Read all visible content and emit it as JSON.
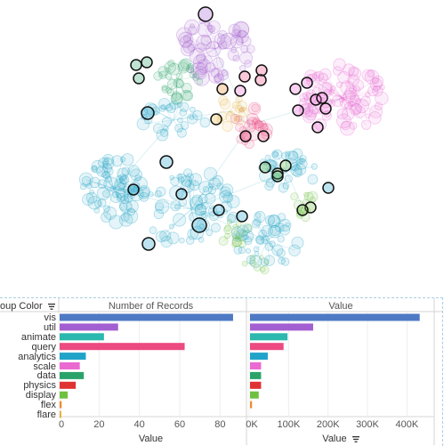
{
  "legend": {
    "title": "oup Color",
    "icon": "sort-icon"
  },
  "colors": {
    "vis": "#4e79c4",
    "util": "#a35fd1",
    "animate": "#2bb8ae",
    "query": "#ec4a80",
    "analytics": "#21a3c9",
    "scale": "#ea6ad2",
    "data": "#2aa36a",
    "physics": "#e03232",
    "display": "#6fc140",
    "flex": "#ef8a2c",
    "flare": "#e3b544"
  },
  "chart_data": [
    {
      "type": "bar",
      "title": "Number of Records",
      "xlabel": "Value",
      "categories": [
        "vis",
        "util",
        "animate",
        "query",
        "analytics",
        "scale",
        "data",
        "physics",
        "display",
        "flex",
        "flare"
      ],
      "values": [
        86,
        29,
        22,
        62,
        13,
        10,
        12,
        8,
        4,
        1,
        0.5
      ],
      "xlim": [
        0,
        90
      ],
      "ticks": [
        "0",
        "20",
        "40",
        "60",
        "80"
      ],
      "tick_values": [
        0,
        20,
        40,
        60,
        80
      ]
    },
    {
      "type": "bar",
      "title": "Value",
      "xlabel": "Value",
      "categories": [
        "vis",
        "util",
        "animate",
        "query",
        "analytics",
        "scale",
        "data",
        "physics",
        "display",
        "flex",
        "flare"
      ],
      "values": [
        430000,
        160000,
        95000,
        85000,
        45000,
        28000,
        28000,
        28000,
        22000,
        5000,
        0
      ],
      "xlim": [
        0,
        460000
      ],
      "ticks": [
        "0K",
        "100K",
        "200K",
        "300K",
        "400K"
      ],
      "tick_values": [
        0,
        100000,
        200000,
        300000,
        400000
      ]
    }
  ]
}
